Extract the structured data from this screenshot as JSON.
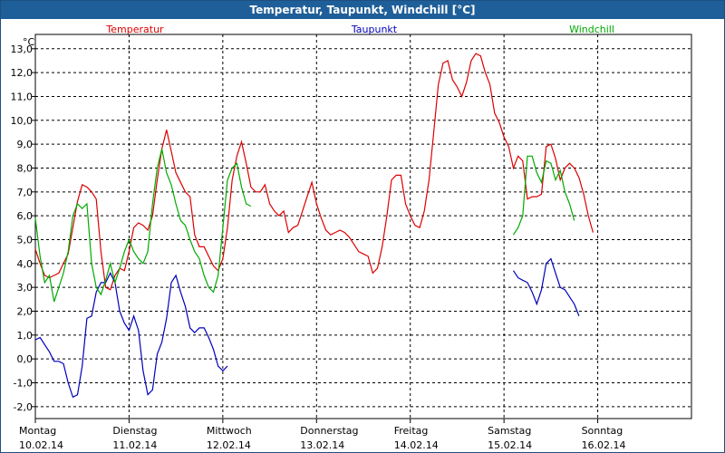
{
  "window": {
    "title": "Temperatur, Taupunkt, Windchill [°C]"
  },
  "chart_data": {
    "type": "line",
    "ylabel": "°C",
    "ylim": [
      -2.5,
      13.6
    ],
    "yticks": [
      -2.0,
      -1.0,
      0.0,
      1.0,
      2.0,
      3.0,
      4.0,
      5.0,
      6.0,
      7.0,
      8.0,
      9.0,
      10.0,
      11.0,
      12.0,
      13.0
    ],
    "xlim": [
      0,
      7
    ],
    "grid": true,
    "legend": "top",
    "days": [
      {
        "weekday": "Montag",
        "date": "10.02.14"
      },
      {
        "weekday": "Dienstag",
        "date": "11.02.14"
      },
      {
        "weekday": "Mittwoch",
        "date": "12.02.14"
      },
      {
        "weekday": "Donnerstag",
        "date": "13.02.14"
      },
      {
        "weekday": "Freitag",
        "date": "14.02.14"
      },
      {
        "weekday": "Samstag",
        "date": "15.02.14"
      },
      {
        "weekday": "Sonntag",
        "date": "16.02.14"
      }
    ],
    "series": [
      {
        "name": "Temperatur",
        "color": "#dd0000",
        "points": [
          [
            0.0,
            4.6
          ],
          [
            0.05,
            4.0
          ],
          [
            0.1,
            3.5
          ],
          [
            0.15,
            3.4
          ],
          [
            0.2,
            3.5
          ],
          [
            0.25,
            3.6
          ],
          [
            0.3,
            4.0
          ],
          [
            0.35,
            4.4
          ],
          [
            0.4,
            5.5
          ],
          [
            0.45,
            6.6
          ],
          [
            0.5,
            7.3
          ],
          [
            0.55,
            7.2
          ],
          [
            0.6,
            7.0
          ],
          [
            0.65,
            6.7
          ],
          [
            0.7,
            4.5
          ],
          [
            0.75,
            3.0
          ],
          [
            0.8,
            2.9
          ],
          [
            0.85,
            3.5
          ],
          [
            0.9,
            3.8
          ],
          [
            0.95,
            3.7
          ],
          [
            1.0,
            4.5
          ],
          [
            1.05,
            5.5
          ],
          [
            1.1,
            5.7
          ],
          [
            1.15,
            5.6
          ],
          [
            1.2,
            5.4
          ],
          [
            1.25,
            6.0
          ],
          [
            1.3,
            7.5
          ],
          [
            1.35,
            8.8
          ],
          [
            1.4,
            9.6
          ],
          [
            1.45,
            8.7
          ],
          [
            1.5,
            7.8
          ],
          [
            1.55,
            7.4
          ],
          [
            1.6,
            7.0
          ],
          [
            1.65,
            6.8
          ],
          [
            1.7,
            5.2
          ],
          [
            1.75,
            4.7
          ],
          [
            1.8,
            4.7
          ],
          [
            1.85,
            4.3
          ],
          [
            1.9,
            3.9
          ],
          [
            1.95,
            3.7
          ],
          [
            2.0,
            4.2
          ],
          [
            2.05,
            5.5
          ],
          [
            2.1,
            7.5
          ],
          [
            2.15,
            8.5
          ],
          [
            2.2,
            9.1
          ],
          [
            2.25,
            8.2
          ],
          [
            2.3,
            7.2
          ],
          [
            2.35,
            7.0
          ],
          [
            2.4,
            7.0
          ],
          [
            2.45,
            7.3
          ],
          [
            2.5,
            6.5
          ],
          [
            2.55,
            6.2
          ],
          [
            2.6,
            6.0
          ],
          [
            2.65,
            6.2
          ],
          [
            2.7,
            5.3
          ],
          [
            2.75,
            5.5
          ],
          [
            2.8,
            5.6
          ],
          [
            2.85,
            6.2
          ],
          [
            2.9,
            6.8
          ],
          [
            2.95,
            7.4
          ],
          [
            3.0,
            6.5
          ],
          [
            3.05,
            5.9
          ],
          [
            3.1,
            5.4
          ],
          [
            3.15,
            5.2
          ],
          [
            3.2,
            5.3
          ],
          [
            3.25,
            5.4
          ],
          [
            3.3,
            5.3
          ],
          [
            3.35,
            5.1
          ],
          [
            3.4,
            4.8
          ],
          [
            3.45,
            4.5
          ],
          [
            3.5,
            4.4
          ],
          [
            3.55,
            4.3
          ],
          [
            3.6,
            3.6
          ],
          [
            3.65,
            3.8
          ],
          [
            3.7,
            4.7
          ],
          [
            3.75,
            6.0
          ],
          [
            3.8,
            7.5
          ],
          [
            3.85,
            7.7
          ],
          [
            3.9,
            7.7
          ],
          [
            3.95,
            6.5
          ],
          [
            4.0,
            6.0
          ],
          [
            4.05,
            5.6
          ],
          [
            4.1,
            5.5
          ],
          [
            4.15,
            6.2
          ],
          [
            4.2,
            7.5
          ],
          [
            4.25,
            9.5
          ],
          [
            4.3,
            11.5
          ],
          [
            4.35,
            12.4
          ],
          [
            4.4,
            12.5
          ],
          [
            4.45,
            11.7
          ],
          [
            4.5,
            11.4
          ],
          [
            4.55,
            11.0
          ],
          [
            4.6,
            11.6
          ],
          [
            4.65,
            12.5
          ],
          [
            4.7,
            12.8
          ],
          [
            4.75,
            12.7
          ],
          [
            4.8,
            12.0
          ],
          [
            4.85,
            11.5
          ],
          [
            4.9,
            10.3
          ],
          [
            4.95,
            9.9
          ],
          [
            5.0,
            9.3
          ],
          [
            5.05,
            8.9
          ],
          [
            5.1,
            8.0
          ],
          [
            5.15,
            8.5
          ],
          [
            5.2,
            8.3
          ],
          [
            5.25,
            6.7
          ],
          [
            5.3,
            6.8
          ],
          [
            5.35,
            6.8
          ],
          [
            5.4,
            6.9
          ],
          [
            5.45,
            8.9
          ],
          [
            5.5,
            9.0
          ],
          [
            5.55,
            8.4
          ],
          [
            5.6,
            7.5
          ],
          [
            5.65,
            8.0
          ],
          [
            5.7,
            8.2
          ],
          [
            5.75,
            8.0
          ],
          [
            5.8,
            7.6
          ],
          [
            5.85,
            6.9
          ],
          [
            5.9,
            6.0
          ],
          [
            5.95,
            5.3
          ]
        ]
      },
      {
        "name": "Taupunkt",
        "color": "#0000bb",
        "points": [
          [
            0.0,
            0.8
          ],
          [
            0.05,
            0.9
          ],
          [
            0.1,
            0.6
          ],
          [
            0.15,
            0.3
          ],
          [
            0.2,
            -0.1
          ],
          [
            0.25,
            -0.1
          ],
          [
            0.3,
            -0.2
          ],
          [
            0.35,
            -1.0
          ],
          [
            0.4,
            -1.6
          ],
          [
            0.45,
            -1.5
          ],
          [
            0.5,
            -0.3
          ],
          [
            0.55,
            1.7
          ],
          [
            0.6,
            1.8
          ],
          [
            0.65,
            2.8
          ],
          [
            0.7,
            3.2
          ],
          [
            0.75,
            3.2
          ],
          [
            0.8,
            3.6
          ],
          [
            0.85,
            3.2
          ],
          [
            0.9,
            2.0
          ],
          [
            0.95,
            1.5
          ],
          [
            1.0,
            1.2
          ],
          [
            1.05,
            1.8
          ],
          [
            1.1,
            1.2
          ],
          [
            1.15,
            -0.5
          ],
          [
            1.2,
            -1.5
          ],
          [
            1.25,
            -1.3
          ],
          [
            1.3,
            0.2
          ],
          [
            1.35,
            0.7
          ],
          [
            1.4,
            1.7
          ],
          [
            1.45,
            3.2
          ],
          [
            1.5,
            3.5
          ],
          [
            1.55,
            2.8
          ],
          [
            1.6,
            2.2
          ],
          [
            1.65,
            1.3
          ],
          [
            1.7,
            1.1
          ],
          [
            1.75,
            1.3
          ],
          [
            1.8,
            1.3
          ],
          [
            1.85,
            0.9
          ],
          [
            1.9,
            0.4
          ],
          [
            1.95,
            -0.3
          ],
          [
            2.0,
            -0.5
          ],
          [
            2.05,
            -0.3
          ],
          null,
          [
            5.1,
            3.7
          ],
          [
            5.15,
            3.4
          ],
          [
            5.2,
            3.3
          ],
          [
            5.25,
            3.2
          ],
          [
            5.3,
            2.8
          ],
          [
            5.35,
            2.3
          ],
          [
            5.4,
            2.9
          ],
          [
            5.45,
            4.0
          ],
          [
            5.5,
            4.2
          ],
          [
            5.55,
            3.6
          ],
          [
            5.6,
            3.0
          ],
          [
            5.65,
            2.9
          ],
          [
            5.7,
            2.6
          ],
          [
            5.75,
            2.3
          ],
          [
            5.8,
            1.8
          ]
        ]
      },
      {
        "name": "Windchill",
        "color": "#00aa00",
        "points": [
          [
            0.0,
            5.9
          ],
          [
            0.05,
            4.3
          ],
          [
            0.1,
            3.2
          ],
          [
            0.15,
            3.5
          ],
          [
            0.2,
            2.4
          ],
          [
            0.25,
            3.0
          ],
          [
            0.3,
            3.6
          ],
          [
            0.35,
            4.5
          ],
          [
            0.4,
            6.0
          ],
          [
            0.45,
            6.5
          ],
          [
            0.5,
            6.3
          ],
          [
            0.55,
            6.5
          ],
          [
            0.6,
            4.0
          ],
          [
            0.65,
            3.0
          ],
          [
            0.7,
            2.7
          ],
          [
            0.75,
            3.3
          ],
          [
            0.8,
            4.0
          ],
          [
            0.85,
            3.2
          ],
          [
            0.9,
            3.8
          ],
          [
            0.95,
            4.5
          ],
          [
            1.0,
            5.0
          ],
          [
            1.05,
            4.5
          ],
          [
            1.1,
            4.2
          ],
          [
            1.15,
            4.0
          ],
          [
            1.2,
            4.5
          ],
          [
            1.25,
            6.5
          ],
          [
            1.3,
            8.0
          ],
          [
            1.35,
            8.8
          ],
          [
            1.4,
            7.8
          ],
          [
            1.45,
            7.3
          ],
          [
            1.5,
            6.5
          ],
          [
            1.55,
            5.8
          ],
          [
            1.6,
            5.6
          ],
          [
            1.65,
            5.0
          ],
          [
            1.7,
            4.5
          ],
          [
            1.75,
            4.2
          ],
          [
            1.8,
            3.5
          ],
          [
            1.85,
            3.0
          ],
          [
            1.9,
            2.8
          ],
          [
            1.95,
            3.5
          ],
          [
            2.0,
            5.5
          ],
          [
            2.05,
            7.5
          ],
          [
            2.1,
            8.0
          ],
          [
            2.15,
            8.2
          ],
          [
            2.2,
            7.2
          ],
          [
            2.25,
            6.5
          ],
          [
            2.3,
            6.4
          ],
          null,
          [
            5.1,
            5.2
          ],
          [
            5.15,
            5.5
          ],
          [
            5.2,
            6.0
          ],
          [
            5.25,
            8.5
          ],
          [
            5.3,
            8.5
          ],
          [
            5.35,
            7.8
          ],
          [
            5.4,
            7.4
          ],
          [
            5.45,
            8.3
          ],
          [
            5.5,
            8.2
          ],
          [
            5.55,
            7.5
          ],
          [
            5.6,
            7.9
          ],
          [
            5.65,
            7.0
          ],
          [
            5.7,
            6.5
          ],
          [
            5.75,
            5.8
          ]
        ]
      }
    ]
  }
}
